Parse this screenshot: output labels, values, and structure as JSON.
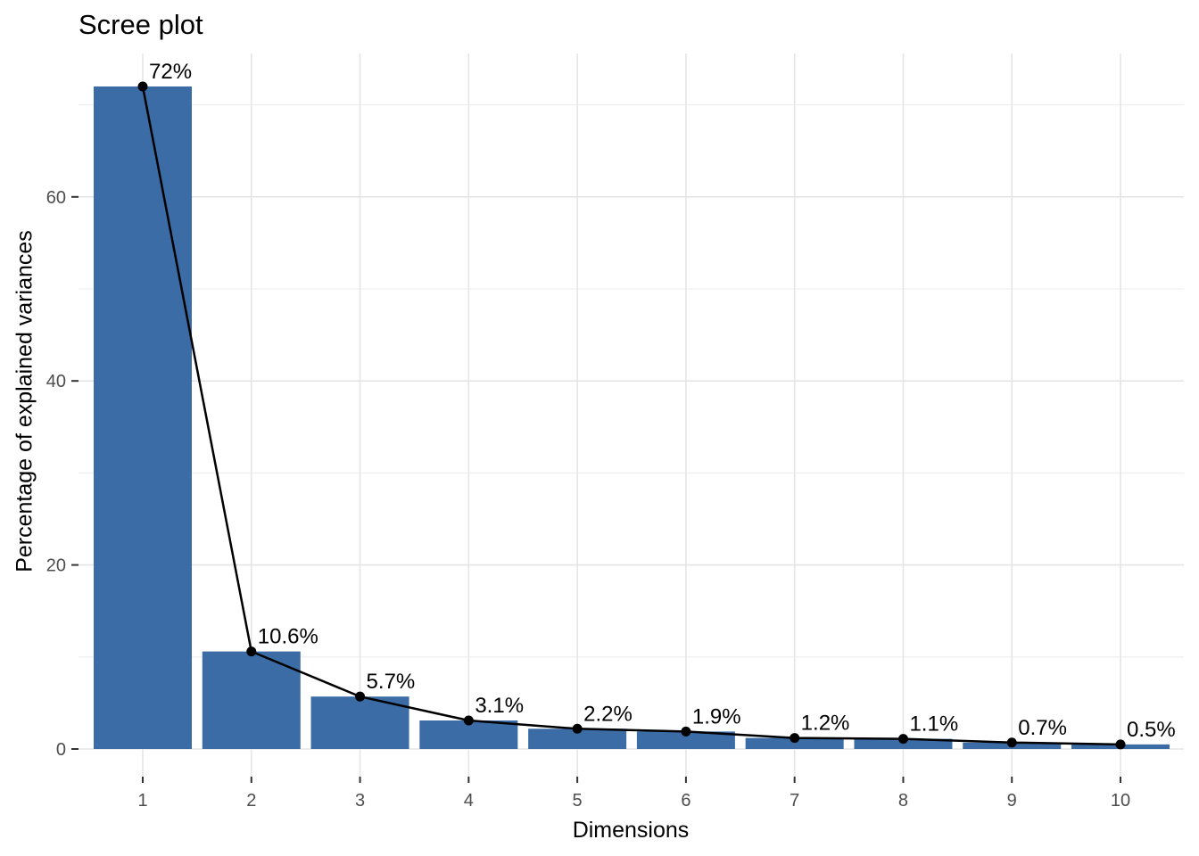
{
  "chart_data": {
    "type": "bar",
    "title": "Scree plot",
    "xlabel": "Dimensions",
    "ylabel": "Percentage of explained variances",
    "categories": [
      "1",
      "2",
      "3",
      "4",
      "5",
      "6",
      "7",
      "8",
      "9",
      "10"
    ],
    "values": [
      72,
      10.6,
      5.7,
      3.1,
      2.2,
      1.9,
      1.2,
      1.1,
      0.7,
      0.5
    ],
    "point_labels": [
      "72%",
      "10.6%",
      "5.7%",
      "3.1%",
      "2.2%",
      "1.9%",
      "1.2%",
      "1.1%",
      "0.7%",
      "0.5%"
    ],
    "yticks": [
      0,
      20,
      40,
      60
    ],
    "yticks_minor": [
      10,
      30,
      50,
      70
    ],
    "ylim": [
      -3.6,
      75.6
    ],
    "grid": true,
    "legend": "none",
    "overlays": [
      "line",
      "points"
    ],
    "colors": {
      "bar_fill": "#3b6ca6",
      "line": "#000000",
      "point": "#000000",
      "grid_major": "#e5e5e5",
      "grid_minor": "#eeeeee",
      "tick_mark": "#333333",
      "tick_text": "#4d4d4d",
      "label_text": "#000000",
      "axis_title": "#000000",
      "title_text": "#000000",
      "background": "#ffffff"
    }
  }
}
